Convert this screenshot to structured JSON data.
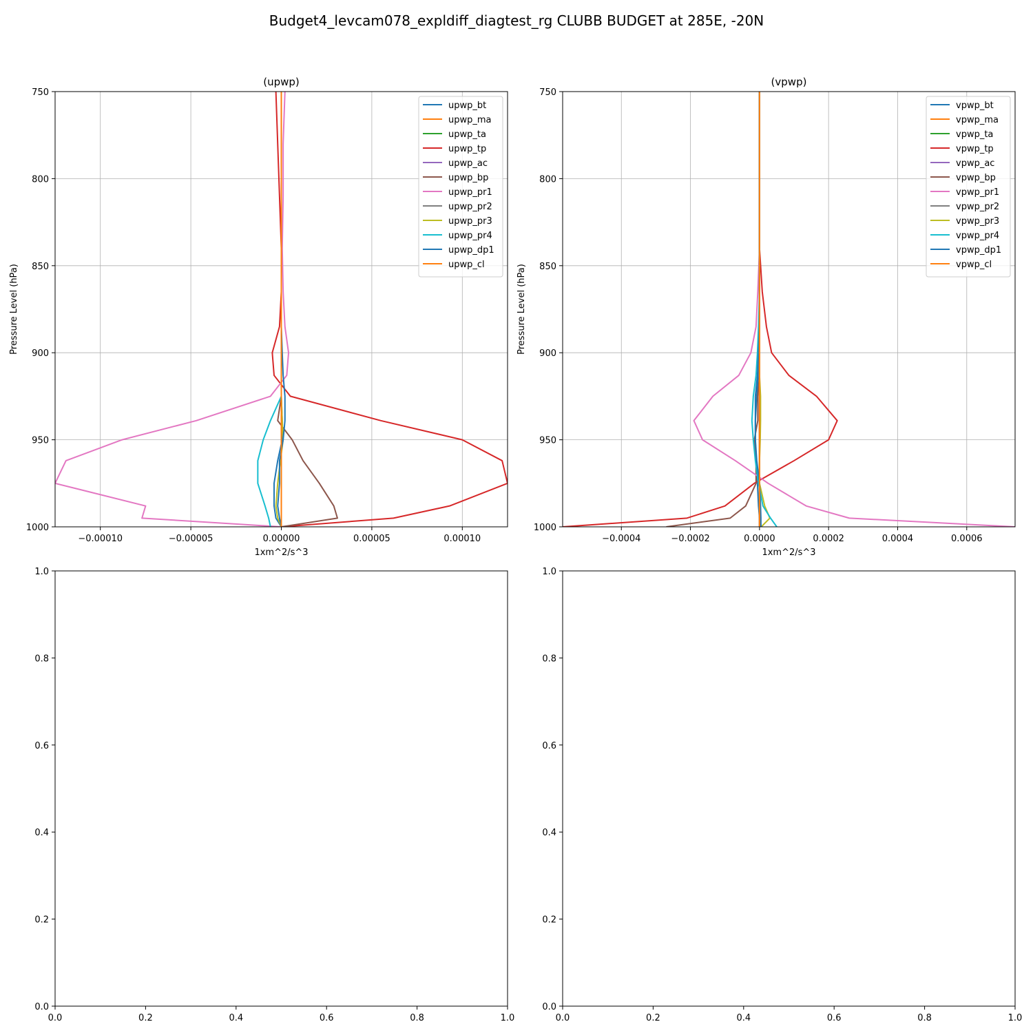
{
  "figure_title": "Budget4_levcam078_expldiff_diagtest_rg CLUBB BUDGET at 285E, -20N",
  "chart_data": [
    {
      "type": "line",
      "title": "(upwp)",
      "xlabel": "1xm^2/s^3",
      "ylabel": "Pressure Level (hPa)",
      "xlim": [
        -0.000125,
        0.000125
      ],
      "ylim": [
        1000,
        750
      ],
      "xticks": [
        -0.0001,
        -5e-05,
        0,
        5e-05,
        0.0001
      ],
      "xtick_labels": [
        "−0.00010",
        "−0.00005",
        "0.00000",
        "0.00005",
        "0.00010"
      ],
      "yticks": [
        750,
        800,
        850,
        900,
        950,
        1000
      ],
      "ytick_labels": [
        "750",
        "800",
        "850",
        "900",
        "950",
        "1000"
      ],
      "grid": true,
      "legend": "top-right",
      "levels": [
        750,
        780,
        810,
        840,
        865,
        885,
        900,
        913,
        925,
        939,
        950,
        962,
        975,
        988,
        995,
        1000
      ],
      "series": [
        {
          "name": "upwp_bt",
          "color": "#1f77b4",
          "values": [
            0,
            0,
            0,
            0,
            0,
            0,
            0,
            0,
            0,
            5e-07,
            5e-07,
            -2e-06,
            -4e-06,
            -4e-06,
            -3e-06,
            0
          ]
        },
        {
          "name": "upwp_ma",
          "color": "#ff7f0e",
          "values": [
            0,
            0,
            0,
            0,
            0,
            0,
            0,
            0,
            0,
            0,
            0,
            0,
            0,
            0,
            0,
            0
          ]
        },
        {
          "name": "upwp_ta",
          "color": "#2ca02c",
          "values": [
            0,
            0,
            0,
            0,
            0,
            0,
            0,
            0,
            0,
            0,
            0,
            0,
            0,
            0,
            0,
            0
          ]
        },
        {
          "name": "upwp_tp",
          "color": "#d62728",
          "values": [
            -3e-06,
            -2e-06,
            -1e-06,
            0,
            0,
            -1e-06,
            -5e-06,
            -4e-06,
            5e-06,
            5.5e-05,
            0.0001,
            0.000122,
            0.000125,
            9.3e-05,
            6.2e-05,
            0
          ]
        },
        {
          "name": "upwp_ac",
          "color": "#9467bd",
          "values": [
            0,
            0,
            0,
            0,
            0,
            0,
            0,
            0,
            0,
            0,
            0,
            0,
            0,
            0,
            0,
            0
          ]
        },
        {
          "name": "upwp_bp",
          "color": "#8c564b",
          "values": [
            0,
            0,
            0,
            0,
            0,
            0,
            0,
            0,
            0,
            -2e-06,
            6e-06,
            1.2e-05,
            2.1e-05,
            2.9e-05,
            3.1e-05,
            0
          ]
        },
        {
          "name": "upwp_pr1",
          "color": "#e377c2",
          "values": [
            2e-06,
            1e-06,
            1e-06,
            5e-07,
            1e-06,
            2e-06,
            4e-06,
            3e-06,
            -6e-06,
            -4.7e-05,
            -8.8e-05,
            -0.000119,
            -0.000125,
            -7.5e-05,
            -7.7e-05,
            0
          ]
        },
        {
          "name": "upwp_pr2",
          "color": "#7f7f7f",
          "values": [
            0,
            0,
            0,
            0,
            0,
            0,
            0,
            0,
            0,
            0,
            0,
            0,
            0,
            0,
            0,
            0
          ]
        },
        {
          "name": "upwp_pr3",
          "color": "#bcbd22",
          "values": [
            0,
            0,
            0,
            0,
            0,
            0,
            0,
            0,
            0,
            5e-07,
            1e-06,
            -5e-07,
            -2e-06,
            -3e-06,
            -2e-06,
            0
          ]
        },
        {
          "name": "upwp_pr4",
          "color": "#17becf",
          "values": [
            0,
            0,
            0,
            0,
            0,
            0,
            0,
            0,
            0,
            -6e-06,
            -1e-05,
            -1.3e-05,
            -1.3e-05,
            -9e-06,
            -7e-06,
            -6e-06
          ]
        },
        {
          "name": "upwp_dp1",
          "color": "#1f77b4",
          "values": [
            0,
            0,
            0,
            0,
            0,
            0,
            5e-07,
            1e-06,
            2e-06,
            2e-06,
            1e-06,
            -1e-06,
            -1e-06,
            -2e-06,
            -1e-06,
            0
          ]
        },
        {
          "name": "upwp_cl",
          "color": "#ff7f0e",
          "values": [
            0,
            0,
            0,
            0,
            0,
            0,
            0,
            0,
            0,
            0,
            0,
            0,
            0,
            0,
            0,
            0
          ]
        }
      ]
    },
    {
      "type": "line",
      "title": "(vpwp)",
      "xlabel": "1xm^2/s^3",
      "ylabel": "Pressure Level (hPa)",
      "xlim": [
        -0.00057,
        0.00074
      ],
      "ylim": [
        1000,
        750
      ],
      "xticks": [
        -0.0004,
        -0.0002,
        0,
        0.0002,
        0.0004,
        0.0006
      ],
      "xtick_labels": [
        "−0.0004",
        "−0.0002",
        "0.0000",
        "0.0002",
        "0.0004",
        "0.0006"
      ],
      "yticks": [
        750,
        800,
        850,
        900,
        950,
        1000
      ],
      "ytick_labels": [
        "750",
        "800",
        "850",
        "900",
        "950",
        "1000"
      ],
      "grid": true,
      "legend": "top-right",
      "levels": [
        750,
        780,
        810,
        840,
        865,
        885,
        900,
        913,
        925,
        939,
        950,
        962,
        975,
        988,
        995,
        1000
      ],
      "series": [
        {
          "name": "vpwp_bt",
          "color": "#1f77b4",
          "values": [
            0,
            0,
            0,
            0,
            0,
            0,
            -2e-06,
            -4e-06,
            -8e-06,
            -1.2e-05,
            -1.2e-05,
            -1e-05,
            -6e-06,
            -3e-06,
            0,
            5e-06
          ]
        },
        {
          "name": "vpwp_ma",
          "color": "#ff7f0e",
          "values": [
            0,
            0,
            0,
            0,
            0,
            0,
            0,
            0,
            0,
            0,
            0,
            0,
            0,
            0,
            0,
            0
          ]
        },
        {
          "name": "vpwp_ta",
          "color": "#2ca02c",
          "values": [
            0,
            0,
            0,
            0,
            0,
            0,
            0,
            0,
            0,
            0,
            0,
            0,
            0,
            0,
            0,
            0
          ]
        },
        {
          "name": "vpwp_tp",
          "color": "#d62728",
          "values": [
            0,
            0,
            0,
            0,
            8e-06,
            2e-05,
            3.5e-05,
            8.5e-05,
            0.000165,
            0.000225,
            0.0002,
            0.0001,
            -1.5e-05,
            -0.0001,
            -0.00021,
            -0.00057
          ]
        },
        {
          "name": "vpwp_ac",
          "color": "#9467bd",
          "values": [
            0,
            0,
            0,
            0,
            0,
            0,
            0,
            0,
            0,
            0,
            0,
            0,
            0,
            0,
            0,
            0
          ]
        },
        {
          "name": "vpwp_bp",
          "color": "#8c564b",
          "values": [
            0,
            0,
            0,
            0,
            0,
            0,
            0,
            0,
            -5e-06,
            -5e-06,
            -1.5e-05,
            -1e-05,
            -1e-05,
            -4e-05,
            -8.5e-05,
            -0.00027
          ]
        },
        {
          "name": "vpwp_pr1",
          "color": "#e377c2",
          "values": [
            0,
            0,
            0,
            0,
            -5e-06,
            -1e-05,
            -2.5e-05,
            -6e-05,
            -0.000135,
            -0.00019,
            -0.000165,
            -7e-05,
            2.5e-05,
            0.000135,
            0.00026,
            0.00074
          ]
        },
        {
          "name": "vpwp_pr2",
          "color": "#7f7f7f",
          "values": [
            0,
            0,
            0,
            0,
            0,
            0,
            0,
            0,
            0,
            0,
            0,
            0,
            0,
            0,
            0,
            0
          ]
        },
        {
          "name": "vpwp_pr3",
          "color": "#bcbd22",
          "values": [
            0,
            0,
            0,
            0,
            0,
            0,
            0,
            0,
            3e-06,
            3e-06,
            2e-06,
            0,
            0,
            1.5e-05,
            3e-05,
            5e-06
          ]
        },
        {
          "name": "vpwp_pr4",
          "color": "#17becf",
          "values": [
            0,
            0,
            0,
            0,
            0,
            -3e-06,
            -6e-06,
            -1e-05,
            -1.8e-05,
            -2.2e-05,
            -1.8e-05,
            -1.2e-05,
            -3e-06,
            1e-05,
            3.2e-05,
            5e-05
          ]
        },
        {
          "name": "vpwp_dp1",
          "color": "#1f77b4",
          "values": [
            0,
            0,
            0,
            0,
            0,
            0,
            -3e-06,
            -6e-06,
            -1.2e-05,
            -1.2e-05,
            -1.2e-05,
            -8e-06,
            0,
            3e-06,
            4e-06,
            4e-06
          ]
        },
        {
          "name": "vpwp_cl",
          "color": "#ff7f0e",
          "values": [
            0,
            0,
            0,
            0,
            0,
            0,
            0,
            0,
            0,
            0,
            0,
            0,
            0,
            0,
            0,
            0
          ]
        }
      ]
    },
    {
      "type": "line",
      "title": "",
      "xlabel": "",
      "ylabel": "",
      "xlim": [
        0,
        1
      ],
      "ylim": [
        0,
        1
      ],
      "xticks": [
        0,
        0.2,
        0.4,
        0.6,
        0.8,
        1.0
      ],
      "xtick_labels": [
        "0.0",
        "0.2",
        "0.4",
        "0.6",
        "0.8",
        "1.0"
      ],
      "yticks": [
        0,
        0.2,
        0.4,
        0.6,
        0.8,
        1.0
      ],
      "ytick_labels": [
        "0.0",
        "0.2",
        "0.4",
        "0.6",
        "0.8",
        "1.0"
      ],
      "grid": false,
      "series": []
    },
    {
      "type": "line",
      "title": "",
      "xlabel": "",
      "ylabel": "",
      "xlim": [
        0,
        1
      ],
      "ylim": [
        0,
        1
      ],
      "xticks": [
        0,
        0.2,
        0.4,
        0.6,
        0.8,
        1.0
      ],
      "xtick_labels": [
        "0.0",
        "0.2",
        "0.4",
        "0.6",
        "0.8",
        "1.0"
      ],
      "yticks": [
        0,
        0.2,
        0.4,
        0.6,
        0.8,
        1.0
      ],
      "ytick_labels": [
        "0.0",
        "0.2",
        "0.4",
        "0.6",
        "0.8",
        "1.0"
      ],
      "grid": false,
      "series": []
    }
  ]
}
